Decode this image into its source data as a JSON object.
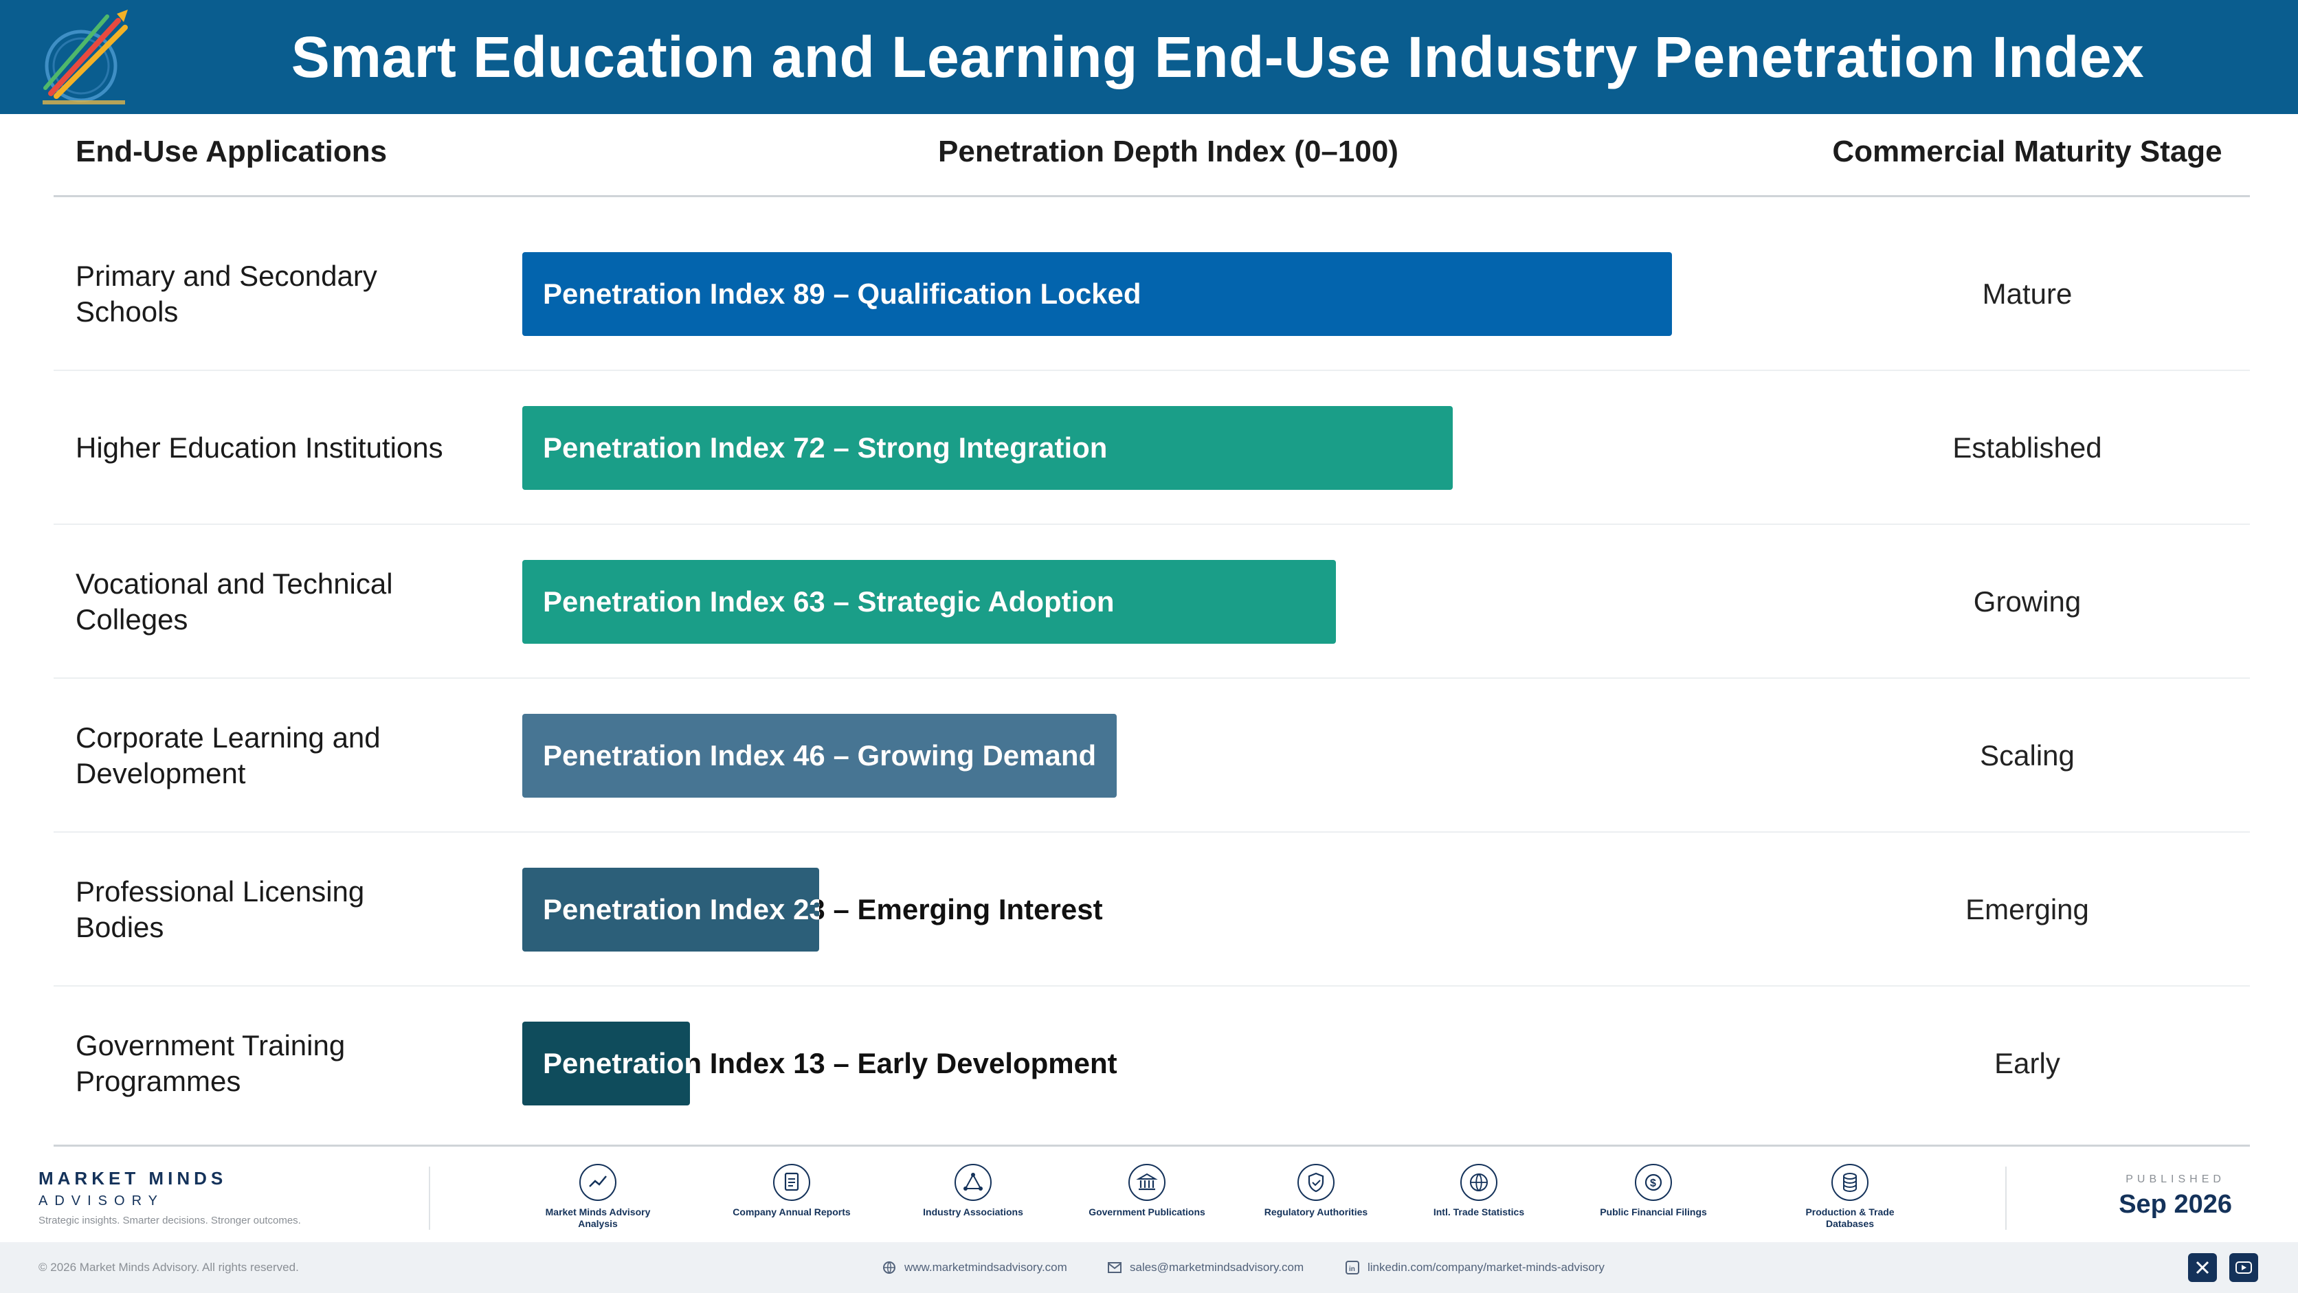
{
  "header": {
    "title": "Smart Education and Learning End-Use Industry Penetration Index"
  },
  "columns": {
    "applications": "End-Use Applications",
    "depth": "Penetration Depth Index (0–100)",
    "stage": "Commercial Maturity Stage"
  },
  "chart_data": {
    "type": "bar",
    "orientation": "horizontal",
    "title": "Smart Education and Learning End-Use Industry Penetration Index",
    "xlabel": "Penetration Depth Index (0–100)",
    "xlim": [
      0,
      100
    ],
    "categories": [
      "Primary and Secondary Schools",
      "Higher Education Institutions",
      "Vocational and Technical Colleges",
      "Corporate Learning and Development",
      "Professional Licensing Bodies",
      "Government Training Programmes"
    ],
    "values": [
      89,
      72,
      63,
      46,
      23,
      13
    ],
    "bar_labels": [
      "Penetration Index 89 – Qualification Locked",
      "Penetration Index 72 – Strong Integration",
      "Penetration Index 63 – Strategic Adoption",
      "Penetration Index 46 – Growing Demand",
      "Penetration Index 23 – Emerging Interest",
      "Penetration Index 13 – Early Development"
    ],
    "stages": [
      "Mature",
      "Established",
      "Growing",
      "Scaling",
      "Emerging",
      "Early"
    ],
    "colors": [
      "#0364ad",
      "#1a9e88",
      "#1a9e88",
      "#477593",
      "#2c5f79",
      "#0f4c5c"
    ]
  },
  "footer": {
    "brand_name": "MARKET MINDS",
    "brand_sub": "ADVISORY",
    "tagline": "Strategic insights. Smarter decisions. Stronger outcomes.",
    "sources": [
      {
        "icon": "chart-line-icon",
        "label": "Market Minds Advisory Analysis"
      },
      {
        "icon": "document-icon",
        "label": "Company Annual Reports"
      },
      {
        "icon": "network-icon",
        "label": "Industry Associations"
      },
      {
        "icon": "government-building-icon",
        "label": "Government Publications"
      },
      {
        "icon": "shield-icon",
        "label": "Regulatory Authorities"
      },
      {
        "icon": "globe-icon",
        "label": "Intl. Trade Statistics"
      },
      {
        "icon": "dollar-coin-icon",
        "label": "Public Financial Filings"
      },
      {
        "icon": "database-icon",
        "label": "Production & Trade Databases"
      }
    ],
    "published_label": "PUBLISHED",
    "published_date": "Sep 2026",
    "copyright": "© 2026 Market Minds Advisory. All rights reserved.",
    "website": "www.marketmindsadvisory.com",
    "email": "sales@marketmindsadvisory.com",
    "linkedin": "linkedin.com/company/market-minds-advisory"
  }
}
